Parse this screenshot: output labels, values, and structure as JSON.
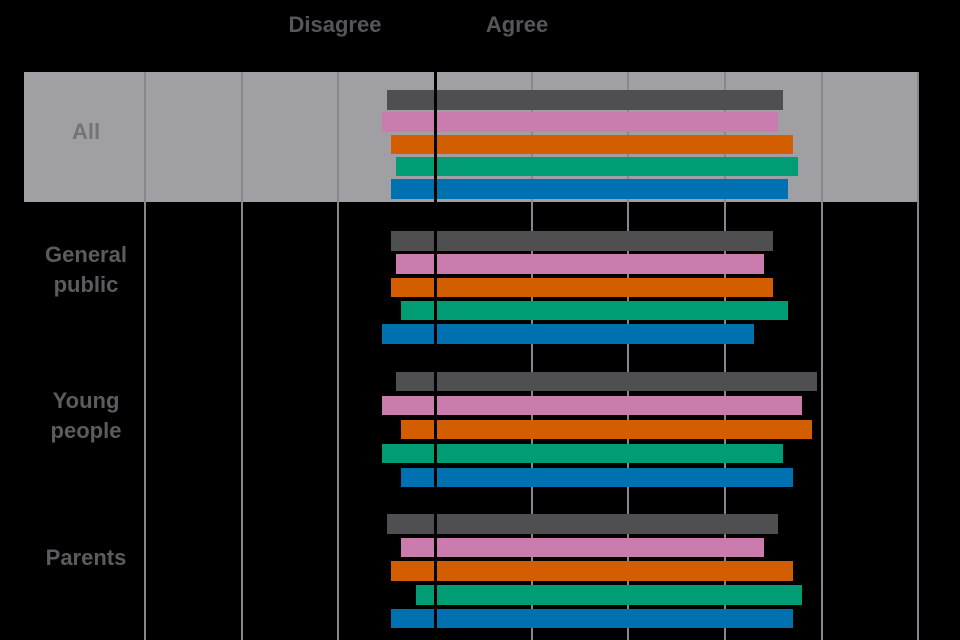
{
  "header": {
    "disagree_label": "Disagree",
    "agree_label": "Agree"
  },
  "chart_data": {
    "type": "bar",
    "orientation": "horizontal-diverging",
    "title": "",
    "x_axis": {
      "unit": "percent",
      "min": -85,
      "max": 100,
      "zero_line": true,
      "gridline_step": 20,
      "gridlines": [
        -60,
        -40,
        -20,
        0,
        20,
        40,
        60,
        80,
        100
      ],
      "top_labels": [
        "Disagree",
        "Agree"
      ]
    },
    "categories": [
      "All",
      "General public",
      "Young people",
      "Parents"
    ],
    "highlight_category": "All",
    "legend": "none",
    "series": [
      {
        "name": "series-1-grey",
        "color": "#4f4f52",
        "disagree": [
          -10,
          -9,
          -8,
          -10
        ],
        "agree": [
          72,
          70,
          79,
          71
        ]
      },
      {
        "name": "series-2-pink",
        "color": "#c97cad",
        "disagree": [
          -11,
          -8,
          -11,
          -7
        ],
        "agree": [
          71,
          68,
          76,
          68
        ]
      },
      {
        "name": "series-3-orange",
        "color": "#d35e01",
        "disagree": [
          -9,
          -9,
          -7,
          -9
        ],
        "agree": [
          74,
          70,
          78,
          74
        ]
      },
      {
        "name": "series-4-green",
        "color": "#009c74",
        "disagree": [
          -8,
          -7,
          -11,
          -4
        ],
        "agree": [
          75,
          73,
          72,
          76
        ]
      },
      {
        "name": "series-5-blue",
        "color": "#0071b0",
        "disagree": [
          -9,
          -11,
          -7,
          -9
        ],
        "agree": [
          73,
          66,
          74,
          74
        ]
      }
    ]
  },
  "colors": {
    "background": "#000000",
    "highlight_band": "#a09fa3",
    "gridline": "#87868a",
    "zero_line": "#000000",
    "header_label": "#55565a",
    "row_label": "#5b5c60",
    "row_label_highlight": "#747378"
  }
}
